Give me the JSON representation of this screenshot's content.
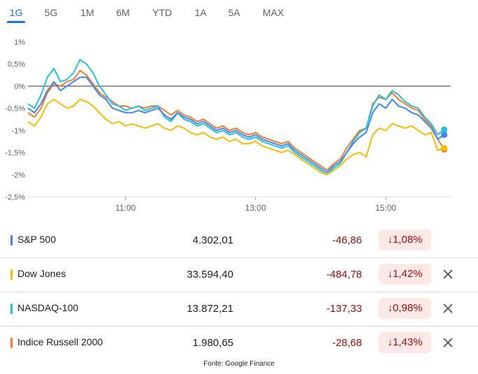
{
  "tabs": [
    {
      "label": "1G",
      "active": true
    },
    {
      "label": "5G",
      "active": false
    },
    {
      "label": "1M",
      "active": false
    },
    {
      "label": "6M",
      "active": false
    },
    {
      "label": "YTD",
      "active": false
    },
    {
      "label": "1A",
      "active": false
    },
    {
      "label": "5A",
      "active": false
    },
    {
      "label": "MAX",
      "active": false
    }
  ],
  "chart_data": {
    "type": "line",
    "y_tick_labels": [
      "1%",
      "0,5%",
      "0%",
      "-0,5%",
      "-1%",
      "-1,5%",
      "-2%",
      "-2,5%"
    ],
    "ylim": [
      -2.5,
      1.0
    ],
    "x_tick_labels": [
      "11:00",
      "13:00",
      "15:00"
    ],
    "x_ticks": [
      11,
      13,
      15
    ],
    "xlim": [
      9.5,
      16.0
    ],
    "grid": false,
    "reference_line": 0,
    "series": [
      {
        "name": "S&P 500",
        "color": "#4285f4",
        "x": [
          9.5,
          9.6,
          9.7,
          9.8,
          9.9,
          10.0,
          10.1,
          10.2,
          10.3,
          10.4,
          10.5,
          10.6,
          10.7,
          10.8,
          10.9,
          11.0,
          11.1,
          11.2,
          11.3,
          11.4,
          11.5,
          11.6,
          11.7,
          11.8,
          11.9,
          12.0,
          12.1,
          12.2,
          12.3,
          12.4,
          12.5,
          12.6,
          12.7,
          12.8,
          12.9,
          13.0,
          13.1,
          13.2,
          13.3,
          13.4,
          13.5,
          13.6,
          13.7,
          13.8,
          13.9,
          14.0,
          14.1,
          14.2,
          14.3,
          14.4,
          14.5,
          14.6,
          14.7,
          14.8,
          14.9,
          15.0,
          15.1,
          15.2,
          15.3,
          15.4,
          15.5,
          15.6,
          15.7,
          15.8,
          15.9
        ],
        "values": [
          -0.5,
          -0.6,
          -0.4,
          -0.1,
          0.1,
          -0.1,
          0.0,
          0.1,
          0.2,
          0.2,
          0.0,
          -0.2,
          -0.3,
          -0.5,
          -0.55,
          -0.6,
          -0.6,
          -0.55,
          -0.6,
          -0.55,
          -0.5,
          -0.65,
          -0.75,
          -0.6,
          -0.7,
          -0.75,
          -0.85,
          -0.8,
          -0.9,
          -1.0,
          -0.95,
          -1.05,
          -1.0,
          -1.1,
          -1.15,
          -1.1,
          -1.2,
          -1.25,
          -1.3,
          -1.35,
          -1.3,
          -1.45,
          -1.55,
          -1.65,
          -1.75,
          -1.85,
          -1.95,
          -1.8,
          -1.7,
          -1.5,
          -1.3,
          -1.15,
          -1.05,
          -0.6,
          -0.4,
          -0.5,
          -0.3,
          -0.45,
          -0.5,
          -0.6,
          -0.65,
          -0.8,
          -0.95,
          -1.2,
          -1.1
        ]
      },
      {
        "name": "Dow Jones",
        "color": "#fbbc04",
        "x": [
          9.5,
          9.6,
          9.7,
          9.8,
          9.9,
          10.0,
          10.1,
          10.2,
          10.3,
          10.4,
          10.5,
          10.6,
          10.7,
          10.8,
          10.9,
          11.0,
          11.1,
          11.2,
          11.3,
          11.4,
          11.5,
          11.6,
          11.7,
          11.8,
          11.9,
          12.0,
          12.1,
          12.2,
          12.3,
          12.4,
          12.5,
          12.6,
          12.7,
          12.8,
          12.9,
          13.0,
          13.1,
          13.2,
          13.3,
          13.4,
          13.5,
          13.6,
          13.7,
          13.8,
          13.9,
          14.0,
          14.1,
          14.2,
          14.3,
          14.4,
          14.5,
          14.6,
          14.7,
          14.8,
          14.9,
          15.0,
          15.1,
          15.2,
          15.3,
          15.4,
          15.5,
          15.6,
          15.7,
          15.8,
          15.9
        ],
        "values": [
          -0.8,
          -0.9,
          -0.7,
          -0.4,
          -0.3,
          -0.4,
          -0.5,
          -0.45,
          -0.3,
          -0.35,
          -0.45,
          -0.6,
          -0.75,
          -0.85,
          -0.8,
          -0.9,
          -0.85,
          -0.9,
          -0.95,
          -0.9,
          -0.85,
          -0.95,
          -1.0,
          -0.9,
          -0.95,
          -1.05,
          -1.1,
          -1.05,
          -1.15,
          -1.2,
          -1.15,
          -1.25,
          -1.2,
          -1.3,
          -1.3,
          -1.25,
          -1.35,
          -1.4,
          -1.45,
          -1.5,
          -1.45,
          -1.55,
          -1.65,
          -1.75,
          -1.85,
          -1.95,
          -2.0,
          -1.9,
          -1.8,
          -1.65,
          -1.55,
          -1.5,
          -1.6,
          -1.1,
          -0.95,
          -1.0,
          -0.85,
          -0.9,
          -0.95,
          -0.9,
          -1.0,
          -1.1,
          -1.05,
          -1.45,
          -1.4
        ]
      },
      {
        "name": "NASDAQ-100",
        "color": "#24c1e0",
        "x": [
          9.5,
          9.6,
          9.7,
          9.8,
          9.9,
          10.0,
          10.1,
          10.2,
          10.3,
          10.4,
          10.5,
          10.6,
          10.7,
          10.8,
          10.9,
          11.0,
          11.1,
          11.2,
          11.3,
          11.4,
          11.5,
          11.6,
          11.7,
          11.8,
          11.9,
          12.0,
          12.1,
          12.2,
          12.3,
          12.4,
          12.5,
          12.6,
          12.7,
          12.8,
          12.9,
          13.0,
          13.1,
          13.2,
          13.3,
          13.4,
          13.5,
          13.6,
          13.7,
          13.8,
          13.9,
          14.0,
          14.1,
          14.2,
          14.3,
          14.4,
          14.5,
          14.6,
          14.7,
          14.8,
          14.9,
          15.0,
          15.1,
          15.2,
          15.3,
          15.4,
          15.5,
          15.6,
          15.7,
          15.8,
          15.9
        ],
        "values": [
          -0.4,
          -0.5,
          -0.2,
          0.2,
          0.4,
          0.1,
          0.15,
          0.3,
          0.6,
          0.5,
          0.3,
          0.0,
          -0.2,
          -0.4,
          -0.45,
          -0.55,
          -0.5,
          -0.45,
          -0.55,
          -0.5,
          -0.45,
          -0.7,
          -0.8,
          -0.6,
          -0.75,
          -0.8,
          -0.9,
          -0.85,
          -0.95,
          -1.05,
          -1.0,
          -1.1,
          -1.05,
          -1.15,
          -1.2,
          -1.15,
          -1.25,
          -1.3,
          -1.35,
          -1.4,
          -1.35,
          -1.5,
          -1.6,
          -1.7,
          -1.8,
          -1.9,
          -2.0,
          -1.85,
          -1.75,
          -1.5,
          -1.25,
          -1.05,
          -0.95,
          -0.45,
          -0.2,
          -0.3,
          -0.1,
          -0.2,
          -0.35,
          -0.45,
          -0.5,
          -0.7,
          -0.85,
          -1.1,
          -0.98
        ]
      },
      {
        "name": "Indice Russell 2000",
        "color": "#f47b2a",
        "x": [
          9.5,
          9.6,
          9.7,
          9.8,
          9.9,
          10.0,
          10.1,
          10.2,
          10.3,
          10.4,
          10.5,
          10.6,
          10.7,
          10.8,
          10.9,
          11.0,
          11.1,
          11.2,
          11.3,
          11.4,
          11.5,
          11.6,
          11.7,
          11.8,
          11.9,
          12.0,
          12.1,
          12.2,
          12.3,
          12.4,
          12.5,
          12.6,
          12.7,
          12.8,
          12.9,
          13.0,
          13.1,
          13.2,
          13.3,
          13.4,
          13.5,
          13.6,
          13.7,
          13.8,
          13.9,
          14.0,
          14.1,
          14.2,
          14.3,
          14.4,
          14.5,
          14.6,
          14.7,
          14.8,
          14.9,
          15.0,
          15.1,
          15.2,
          15.3,
          15.4,
          15.5,
          15.6,
          15.7,
          15.8,
          15.9
        ],
        "values": [
          -0.6,
          -0.7,
          -0.5,
          -0.15,
          0.05,
          0.0,
          0.1,
          0.15,
          0.35,
          0.25,
          0.05,
          -0.15,
          -0.25,
          -0.35,
          -0.45,
          -0.45,
          -0.5,
          -0.45,
          -0.5,
          -0.45,
          -0.45,
          -0.55,
          -0.65,
          -0.55,
          -0.65,
          -0.7,
          -0.8,
          -0.75,
          -0.85,
          -0.95,
          -0.9,
          -1.0,
          -0.95,
          -1.05,
          -1.1,
          -1.05,
          -1.15,
          -1.2,
          -1.25,
          -1.3,
          -1.25,
          -1.4,
          -1.5,
          -1.6,
          -1.7,
          -1.8,
          -1.9,
          -1.75,
          -1.65,
          -1.4,
          -1.2,
          -1.0,
          -0.95,
          -0.4,
          -0.25,
          -0.3,
          -0.15,
          -0.3,
          -0.4,
          -0.5,
          -0.55,
          -0.75,
          -0.9,
          -1.2,
          -1.43
        ]
      }
    ]
  },
  "indices": [
    {
      "name": "S&P 500",
      "color": "#4285f4",
      "value": "4.302,01",
      "change": "-46,86",
      "pct": "1,08%",
      "arrow": "↓",
      "removable": false
    },
    {
      "name": "Dow Jones",
      "color": "#fbbc04",
      "value": "33.594,40",
      "change": "-484,78",
      "pct": "1,42%",
      "arrow": "↓",
      "removable": true
    },
    {
      "name": "NASDAQ-100",
      "color": "#24c1e0",
      "value": "13.872,21",
      "change": "-137,33",
      "pct": "0,98%",
      "arrow": "↓",
      "removable": true
    },
    {
      "name": "Indice Russell 2000",
      "color": "#f47b2a",
      "value": "1.980,65",
      "change": "-28,68",
      "pct": "1,43%",
      "arrow": "↓",
      "removable": true
    }
  ],
  "close_icon": "close-icon",
  "footer": {
    "text": "Fonte: Google Finance"
  }
}
